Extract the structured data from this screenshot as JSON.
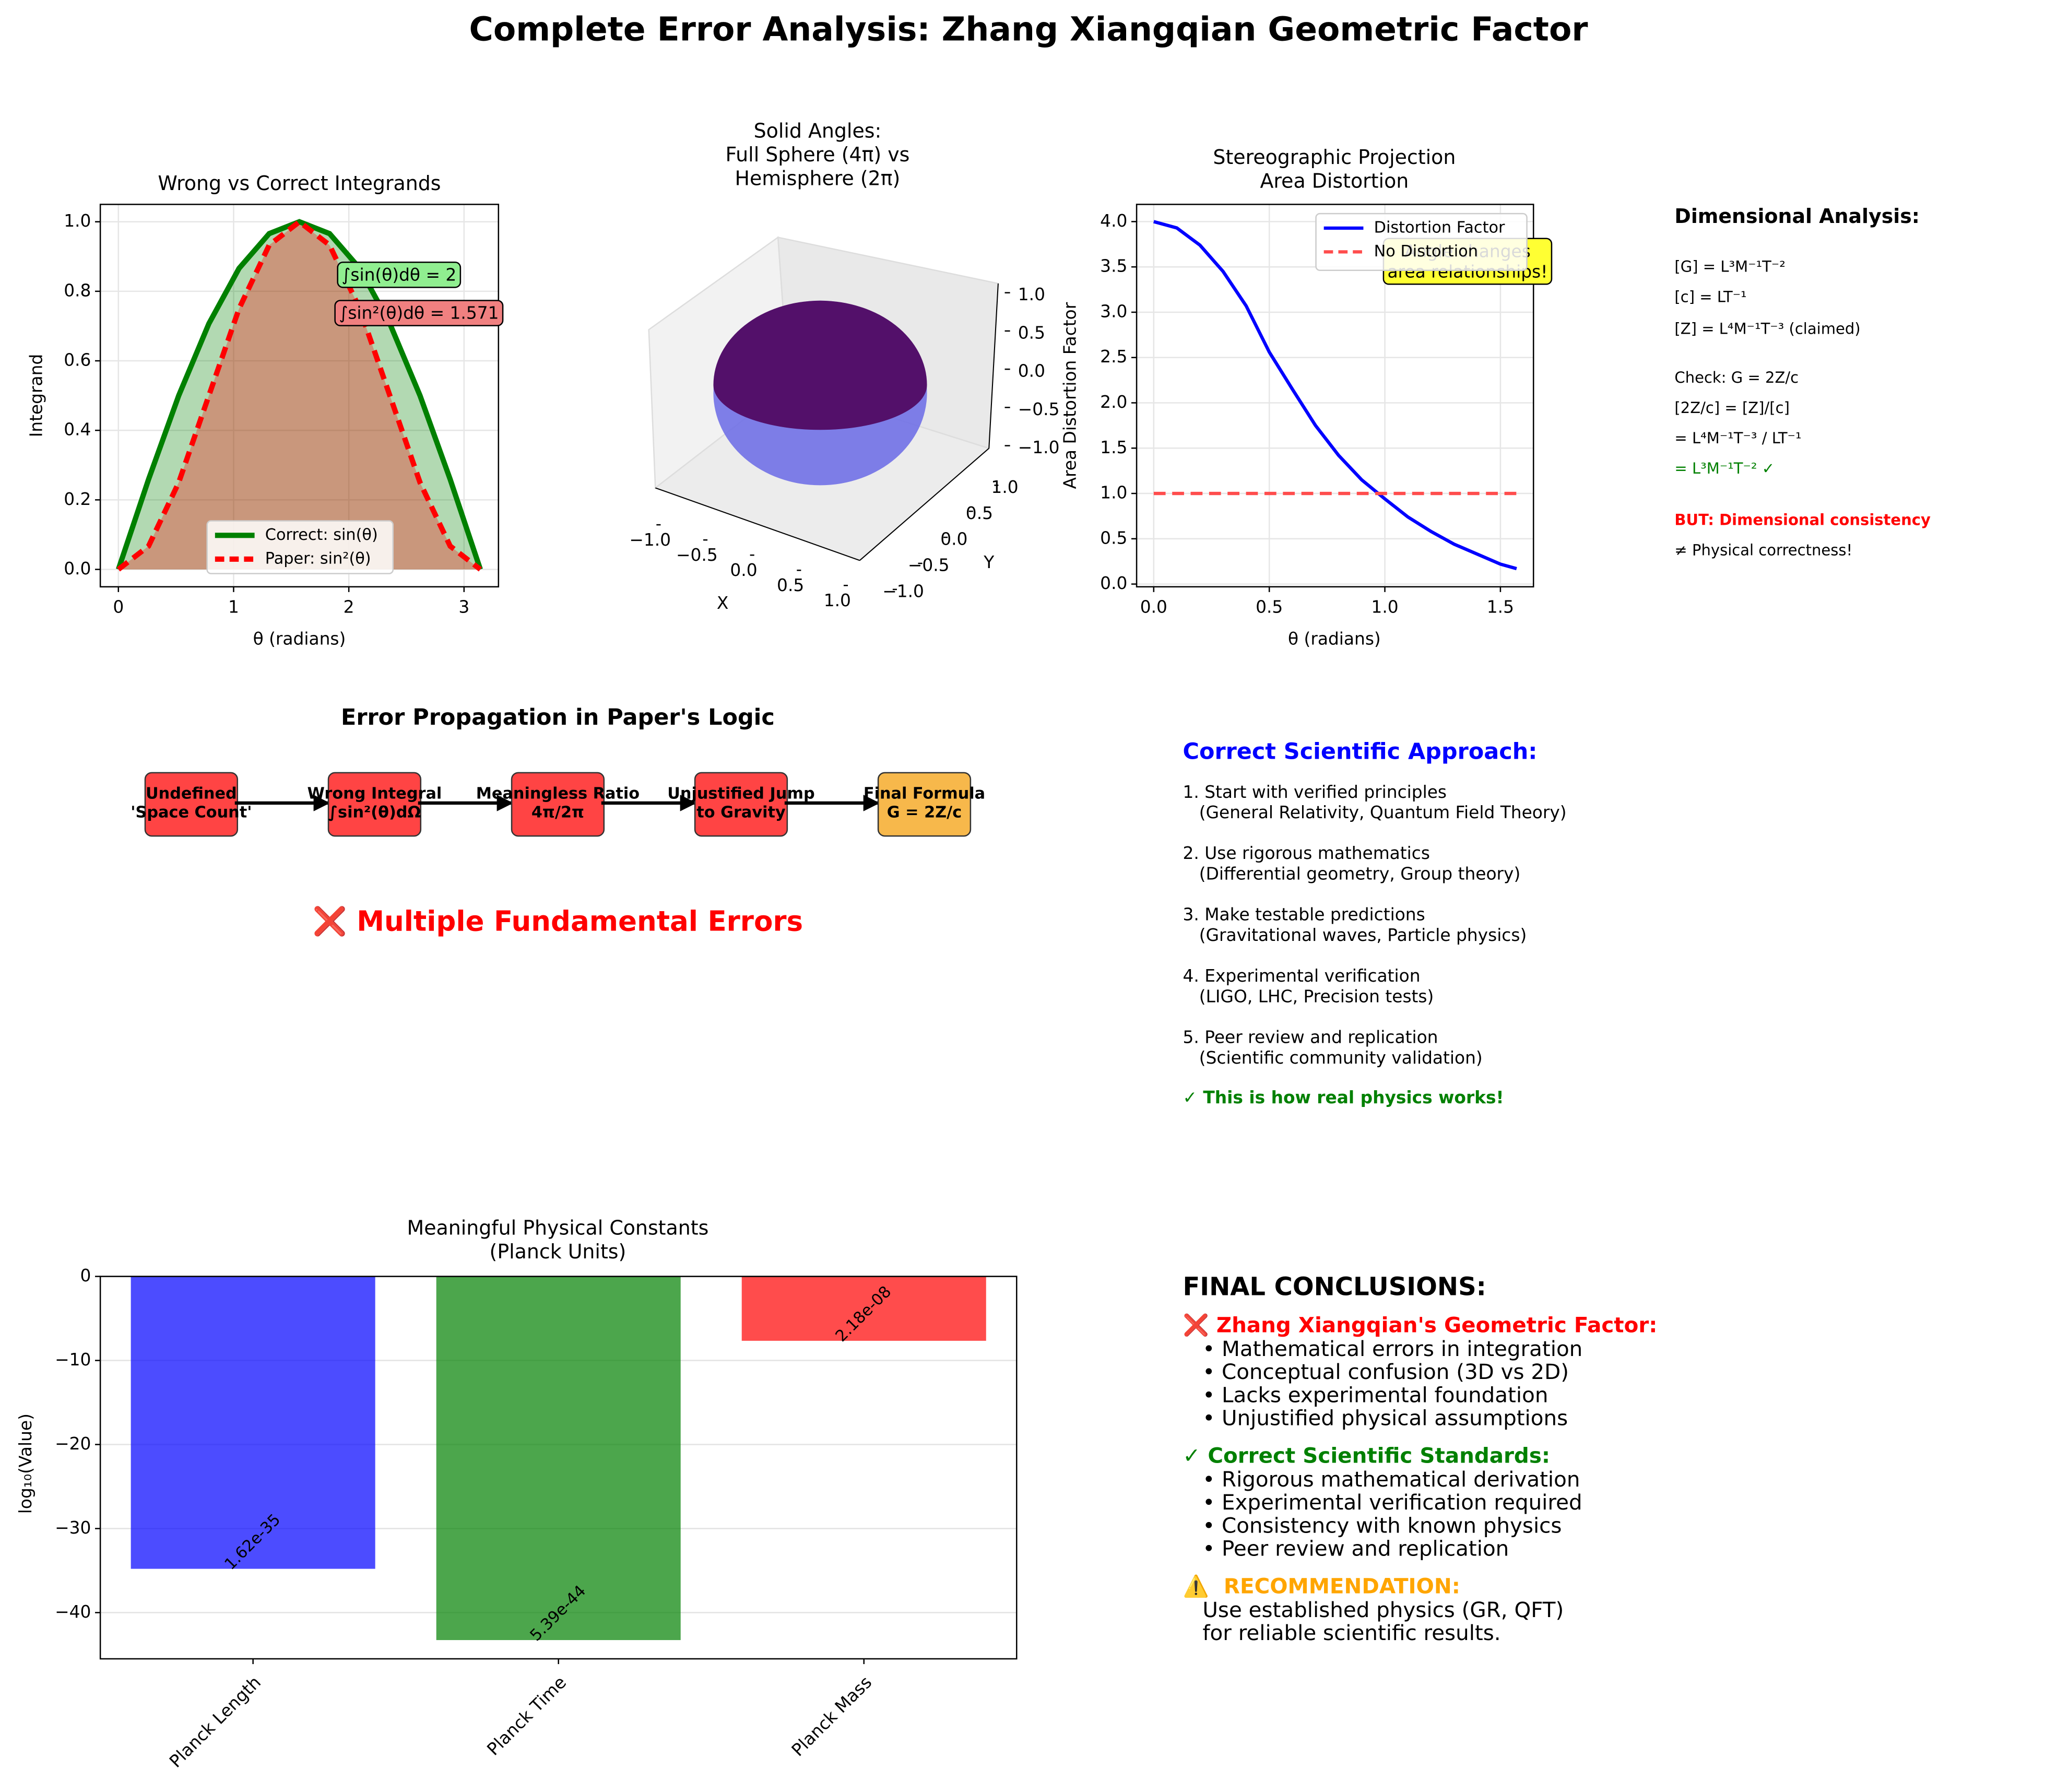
{
  "title": "Complete Error Analysis: Zhang Xiangqian Geometric Factor",
  "chart_data": [
    {
      "type": "line",
      "title": "Wrong vs Correct Integrands",
      "xlabel": "θ (radians)",
      "ylabel": "Integrand",
      "x": [
        0,
        0.2618,
        0.5236,
        0.7854,
        1.0472,
        1.309,
        1.5708,
        1.8326,
        2.0944,
        2.3562,
        2.618,
        2.8798,
        3.1416
      ],
      "series": [
        {
          "name": "Correct: sin(θ)",
          "color": "#008000",
          "style": "solid",
          "fill": true,
          "values": [
            0,
            0.259,
            0.5,
            0.707,
            0.866,
            0.966,
            1,
            0.966,
            0.866,
            0.707,
            0.5,
            0.259,
            0
          ]
        },
        {
          "name": "Paper: sin²(θ)",
          "color": "#ff0000",
          "style": "dashed",
          "fill": true,
          "values": [
            0,
            0.067,
            0.25,
            0.5,
            0.75,
            0.933,
            1,
            0.933,
            0.75,
            0.5,
            0.25,
            0.067,
            0
          ]
        }
      ],
      "xlim": [
        -0.157,
        3.299
      ],
      "ylim": [
        -0.05,
        1.05
      ],
      "xticks": [
        0,
        1,
        2,
        3
      ],
      "yticks": [
        {
          "value": 0,
          "label": "0.0"
        },
        0.2,
        0.4,
        0.6,
        0.8,
        {
          "value": 1,
          "label": "1.0"
        }
      ],
      "grid": true,
      "legend": "lower center",
      "annotations": [
        {
          "text": "∫sin(θ)dθ = 2",
          "color": "#90ee90"
        },
        {
          "text": "∫sin²(θ)dθ = 1.571",
          "color": "#f08080"
        }
      ]
    },
    {
      "type": "surface3d",
      "title": "Solid Angles:\nFull Sphere (4π) vs\nHemisphere (2π)",
      "xlabel": "X",
      "ylabel": "Y",
      "xticks": [
        {
          "value": -1,
          "label": "−1.0"
        },
        {
          "value": -0.5,
          "label": "−0.5"
        },
        {
          "value": 0,
          "label": "0.0"
        },
        0.5,
        {
          "value": 1,
          "label": "1.0"
        }
      ],
      "yticks": [
        {
          "value": -1,
          "label": "−1.0"
        },
        {
          "value": -0.5,
          "label": "−0.5"
        },
        {
          "value": 0,
          "label": "0.0"
        },
        0.5,
        {
          "value": 1,
          "label": "1.0"
        }
      ],
      "zticks": [
        {
          "value": -1,
          "label": "−1.0"
        },
        {
          "value": -0.5,
          "label": "−0.5"
        },
        {
          "value": 0,
          "label": "0.0"
        },
        0.5,
        {
          "value": 1,
          "label": "1.0"
        }
      ],
      "colors": [
        "#6a6ae6",
        "#53106a"
      ]
    },
    {
      "type": "line",
      "title": "Stereographic Projection\nArea Distortion",
      "xlabel": "θ (radians)",
      "ylabel": "Area Distortion Factor",
      "x": [
        0,
        0.1,
        0.2,
        0.3,
        0.4,
        0.5,
        0.6,
        0.7,
        0.8,
        0.9,
        1.0,
        1.1,
        1.2,
        1.3,
        1.4,
        1.5,
        1.57
      ],
      "series": [
        {
          "name": "Distortion Factor",
          "color": "#0000ff",
          "style": "solid",
          "fill": false,
          "values": [
            4.0,
            3.93,
            3.74,
            3.45,
            3.07,
            2.56,
            2.15,
            1.75,
            1.42,
            1.15,
            0.94,
            0.74,
            0.58,
            0.44,
            0.33,
            0.22,
            0.17
          ]
        },
        {
          "name": "No Distortion",
          "color": "#ff4d4d",
          "style": "dashed",
          "fill": false,
          "values": [
            1,
            1,
            1,
            1,
            1,
            1,
            1,
            1,
            1,
            1,
            1,
            1,
            1,
            1,
            1,
            1,
            1
          ]
        }
      ],
      "xlim": [
        -0.074,
        1.643
      ],
      "ylim": [
        -0.03,
        4.19
      ],
      "xticks": [
        {
          "value": 0,
          "label": "0.0"
        },
        0.5,
        {
          "value": 1,
          "label": "1.0"
        },
        1.5
      ],
      "yticks": [
        {
          "value": 0,
          "label": "0.0"
        },
        0.5,
        {
          "value": 1,
          "label": "1.0"
        },
        1.5,
        {
          "value": 2,
          "label": "2.0"
        },
        2.5,
        {
          "value": 3,
          "label": "3.0"
        },
        3.5,
        {
          "value": 4,
          "label": "4.0"
        }
      ],
      "grid": true,
      "legend": "upper right",
      "annotations": [
        {
          "text": "Angle changes\narea relationships!",
          "color": "#ffff33"
        }
      ]
    },
    {
      "type": "bar",
      "title": "Meaningful Physical Constants\n(Planck Units)",
      "ylabel": "log₁₀(Value)",
      "categories": [
        "Planck Length",
        "Planck Time",
        "Planck Mass"
      ],
      "values": [
        -34.79,
        -43.27,
        -7.66
      ],
      "value_labels": [
        "1.62e-35",
        "5.39e-44",
        "2.18e-08"
      ],
      "colors": [
        "#0000ff",
        "#008000",
        "#ff0000"
      ],
      "ylim": [
        -45.5,
        0
      ],
      "yticks": [
        {
          "value": -40,
          "label": "−40"
        },
        {
          "value": -30,
          "label": "−30"
        },
        {
          "value": -20,
          "label": "−20"
        },
        {
          "value": -10,
          "label": "−10"
        },
        0
      ],
      "grid": true
    }
  ],
  "dimensional_analysis": {
    "title": "Dimensional Analysis:",
    "lines": [
      {
        "text": "[G] = L³M⁻¹T⁻²"
      },
      {
        "text": "[c] = LT⁻¹"
      },
      {
        "text": "[Z] = L⁴M⁻¹T⁻³ (claimed)"
      },
      {
        "text": "Check: G = 2Z/c"
      },
      {
        "text": "[2Z/c] = [Z]/[c]"
      },
      {
        "text": "= L⁴M⁻¹T⁻³ / LT⁻¹"
      },
      {
        "text": "= L³M⁻¹T⁻² ✓",
        "color": "#008000"
      },
      {
        "text": "BUT: Dimensional consistency",
        "color": "#ff0000",
        "bold": true
      },
      {
        "text": "≠ Physical correctness!"
      }
    ]
  },
  "error_propagation": {
    "title": "Error Propagation in Paper's Logic",
    "nodes": [
      {
        "label": "Undefined\n'Space Count'",
        "color": "#ff4444"
      },
      {
        "label": "Wrong Integral\n∫sin²(θ)dΩ",
        "color": "#ff4444"
      },
      {
        "label": "Meaningless Ratio\n4π/2π",
        "color": "#ff4444"
      },
      {
        "label": "Unjustified Jump\nto Gravity",
        "color": "#ff4444"
      },
      {
        "label": "Final Formula\nG = 2Z/c",
        "color": "#f7b84b"
      }
    ],
    "conclusion": "❌ Multiple Fundamental Errors"
  },
  "approach": {
    "title": "Correct Scientific Approach:",
    "steps": [
      "1. Start with verified principles\n   (General Relativity, Quantum Field Theory)",
      "2. Use rigorous mathematics\n   (Differential geometry, Group theory)",
      "3. Make testable predictions\n   (Gravitational waves, Particle physics)",
      "4. Experimental verification\n   (LIGO, LHC, Precision tests)",
      "5. Peer review and replication\n   (Scientific community validation)"
    ],
    "footer": "✓ This is how real physics works!"
  },
  "conclusions": {
    "title": "FINAL CONCLUSIONS:",
    "sections": [
      {
        "heading": "❌ Zhang Xiangqian's Geometric Factor:",
        "color": "#ff0000",
        "items": [
          "• Mathematical errors in integration",
          "• Conceptual confusion (3D vs 2D)",
          "• Lacks experimental foundation",
          "• Unjustified physical assumptions"
        ]
      },
      {
        "heading": "✓ Correct Scientific Standards:",
        "color": "#008000",
        "items": [
          "• Rigorous mathematical derivation",
          "• Experimental verification required",
          "• Consistency with known physics",
          "• Peer review and replication"
        ]
      },
      {
        "heading": "⚠️  RECOMMENDATION:",
        "color": "#ffa500",
        "items": [
          "Use established physics (GR, QFT)",
          "for reliable scientific results."
        ]
      }
    ]
  }
}
